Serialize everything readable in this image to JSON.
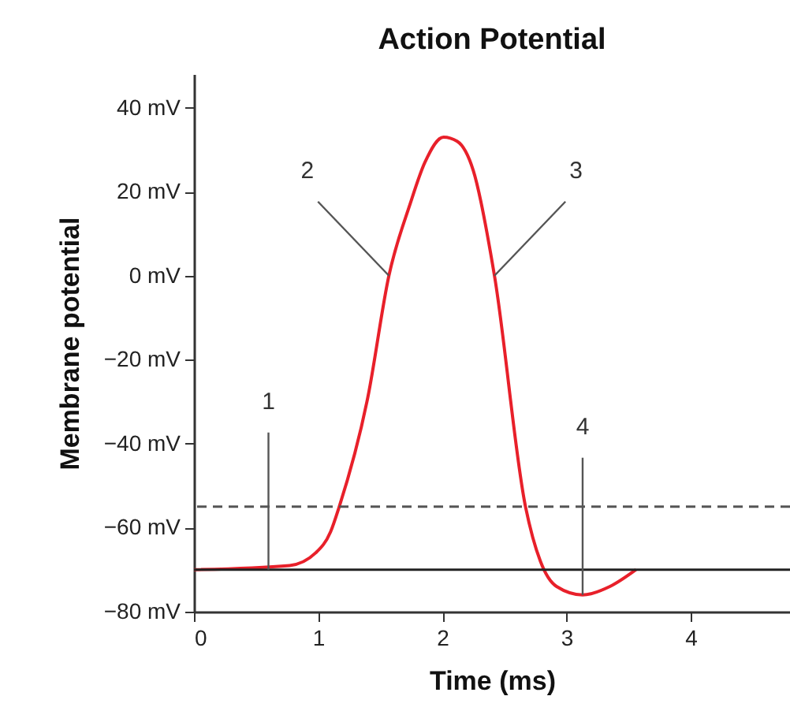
{
  "chart_data": {
    "type": "line",
    "title": "Action Potential",
    "xlabel": "Time (ms)",
    "ylabel": "Membrane potential",
    "x": [
      0,
      0.77,
      0.98,
      1.1,
      1.17,
      1.4,
      1.57,
      1.74,
      1.86,
      2.01,
      2.12,
      2.25,
      2.42,
      2.67,
      2.79,
      2.92,
      3.13,
      3.35,
      3.56
    ],
    "series": [
      {
        "color": "#e8202a",
        "values": [
          -70,
          -69,
          -66,
          -61,
          -55,
          -29,
          0,
          17,
          27,
          33,
          32,
          25,
          0,
          -55,
          -68,
          -74,
          -76,
          -74,
          -70
        ]
      }
    ],
    "xlim": [
      0,
      4.8
    ],
    "xticks": [
      0,
      1,
      2,
      3,
      4
    ],
    "ylim": [
      -80,
      48
    ],
    "yticks": [
      {
        "value": 40,
        "label": "40 mV"
      },
      {
        "value": 20,
        "label": "20 mV"
      },
      {
        "value": 0,
        "label": "0 mV"
      },
      {
        "value": -20,
        "label": "−20 mV"
      },
      {
        "value": -40,
        "label": "−40 mV"
      },
      {
        "value": -60,
        "label": "−60 mV"
      },
      {
        "value": -80,
        "label": "−80 mV"
      }
    ],
    "ref_lines": [
      {
        "axis": "y",
        "value": -55,
        "color": "#555555",
        "line_style": "dashed"
      },
      {
        "axis": "y",
        "value": -70,
        "color": "#222222",
        "line_style": "solid"
      }
    ],
    "annotations": [
      {
        "text": "1",
        "x": 0.6,
        "y": -70
      },
      {
        "text": "2",
        "x": 1.57,
        "y": 0
      },
      {
        "text": "3",
        "x": 2.42,
        "y": 0
      },
      {
        "text": "4",
        "x": 3.13,
        "y": -76
      }
    ],
    "grid": false,
    "marker": "none",
    "line_style": "solid"
  }
}
